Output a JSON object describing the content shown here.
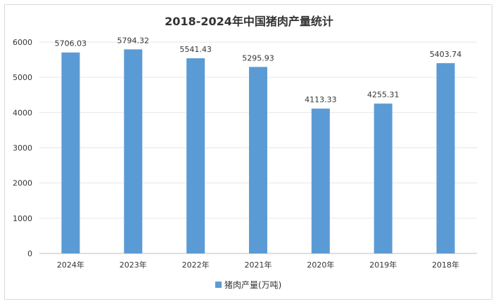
{
  "chart_data": {
    "type": "bar",
    "title": "2018-2024年中国猪肉产量统计",
    "categories": [
      "2024年",
      "2023年",
      "2022年",
      "2021年",
      "2020年",
      "2019年",
      "2018年"
    ],
    "series": [
      {
        "name": "猪肉产量(万吨)",
        "values": [
          5706.03,
          5794.32,
          5541.43,
          5295.93,
          4113.33,
          4255.31,
          5403.74
        ],
        "color": "#5b9bd5"
      }
    ],
    "value_labels": [
      "5706.03",
      "5794.32",
      "5541.43",
      "5295.93",
      "4113.33",
      "4255.31",
      "5403.74"
    ],
    "ylim": [
      0,
      6000
    ],
    "yticks": [
      "0",
      "1000",
      "2000",
      "3000",
      "4000",
      "5000",
      "6000"
    ],
    "grid": true,
    "legend": "bottom",
    "xlabel": "",
    "ylabel": ""
  }
}
